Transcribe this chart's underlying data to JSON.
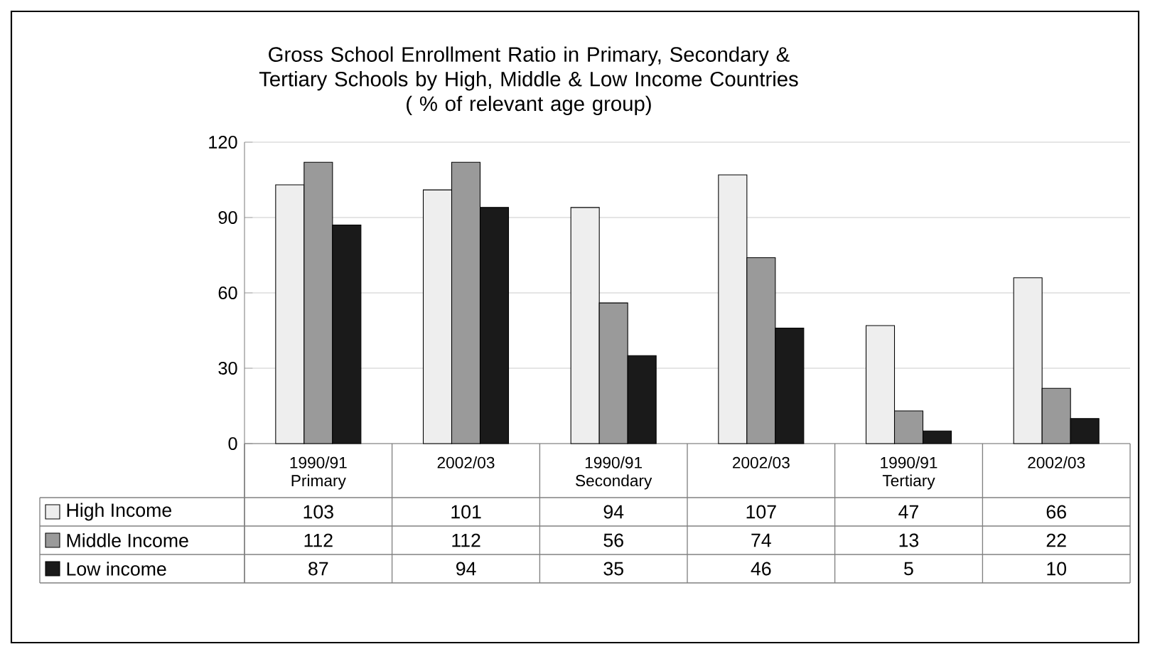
{
  "chart_data": {
    "type": "bar",
    "title": "Gross School Enrollment Ratio in Primary, Secondary & Tertiary Schools by High, Middle & Low Income Countries",
    "subtitle": "( % of relevant age group)",
    "categories": [
      "1990/91 Primary",
      "2002/03",
      "1990/91 Secondary",
      "2002/03",
      "1990/91 Tertiary",
      "2002/03"
    ],
    "series": [
      {
        "name": "High Income",
        "color": "#eeeeee",
        "values": [
          103,
          101,
          94,
          107,
          47,
          66
        ]
      },
      {
        "name": "Middle Income",
        "color": "#9a9a9a",
        "values": [
          112,
          112,
          56,
          74,
          13,
          22
        ]
      },
      {
        "name": "Low income",
        "color": "#1a1a1a",
        "values": [
          87,
          94,
          35,
          46,
          5,
          10
        ]
      }
    ],
    "ylim": [
      0,
      120
    ],
    "yticks": [
      0,
      30,
      60,
      90,
      120
    ],
    "grid": "y",
    "legend": "bottom",
    "data_labels": true
  }
}
